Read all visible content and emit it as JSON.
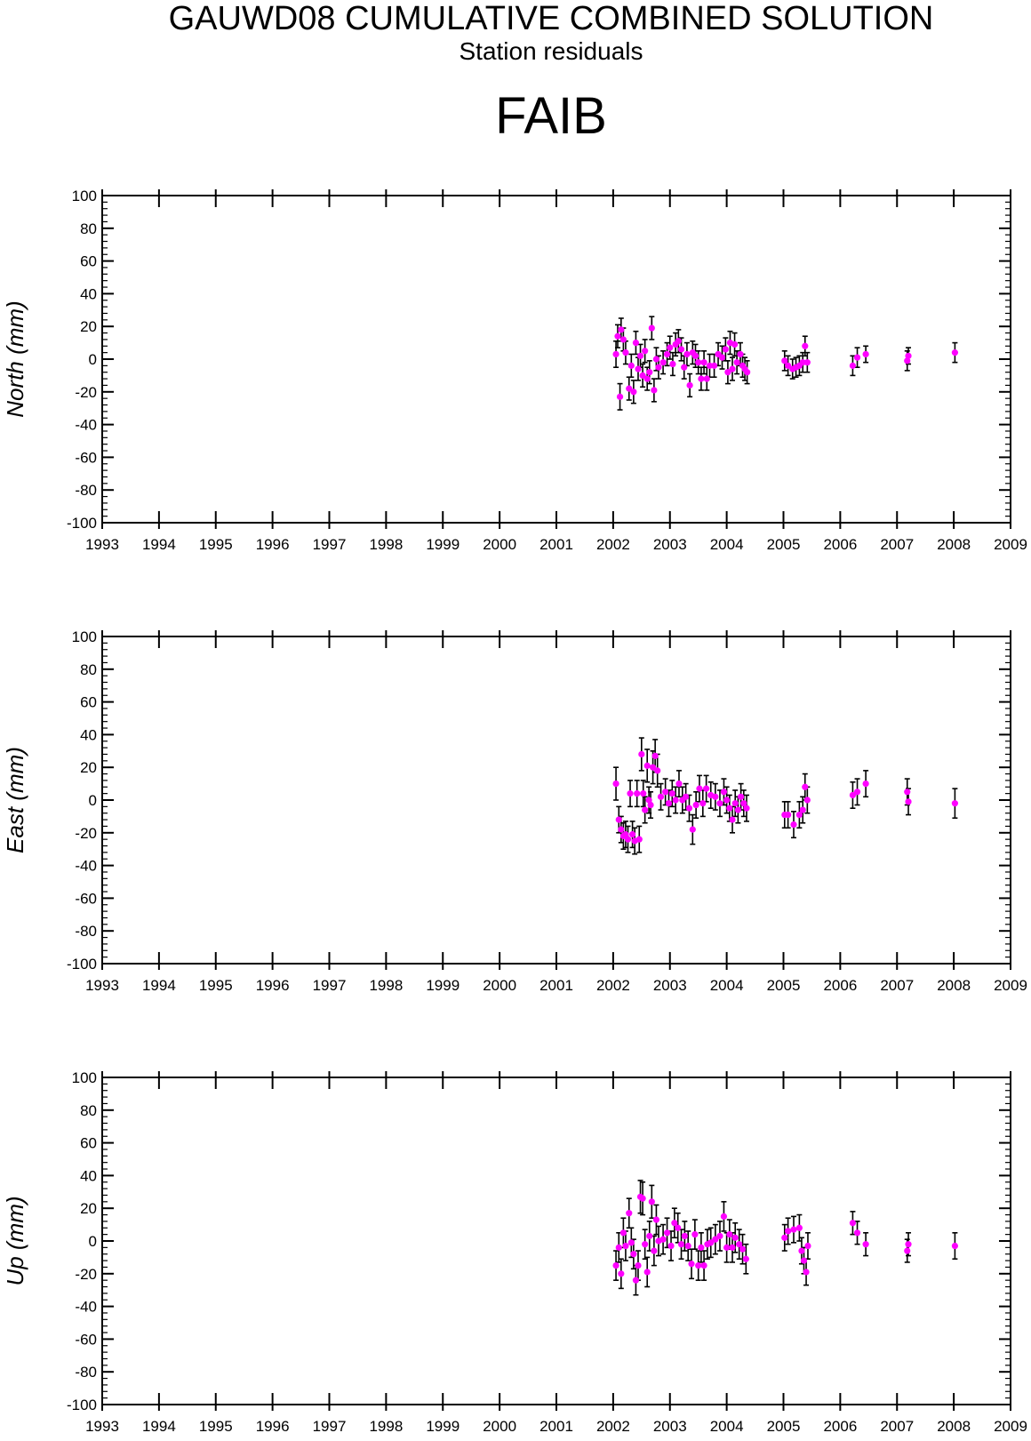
{
  "header": {
    "title": "GAUWD08 CUMULATIVE COMBINED SOLUTION",
    "subtitle": "Station residuals",
    "station": "FAIB"
  },
  "colors": {
    "point": "#ff00ff",
    "errorbar": "#000000",
    "axes": "#000000"
  },
  "chart_data": [
    {
      "type": "scatter",
      "ylabel": "North (mm)",
      "xlim": [
        1993,
        2009
      ],
      "ylim": [
        -100,
        100
      ],
      "x_ticks": [
        "1993",
        "1994",
        "1995",
        "1996",
        "1997",
        "1998",
        "1999",
        "2000",
        "2001",
        "2002",
        "2003",
        "2004",
        "2005",
        "2006",
        "2007",
        "2008",
        "2009"
      ],
      "y_ticks": [
        "100",
        "80",
        "60",
        "40",
        "20",
        "0",
        "-20",
        "-40",
        "-60",
        "-80",
        "-100"
      ],
      "error_bars": true,
      "points": [
        {
          "x": 2002.05,
          "y": 3,
          "err": 8
        },
        {
          "x": 2002.08,
          "y": 14,
          "err": 7
        },
        {
          "x": 2002.12,
          "y": -23,
          "err": 8
        },
        {
          "x": 2002.14,
          "y": 18,
          "err": 7
        },
        {
          "x": 2002.18,
          "y": 12,
          "err": 7
        },
        {
          "x": 2002.22,
          "y": 4,
          "err": 7
        },
        {
          "x": 2002.28,
          "y": -18,
          "err": 7
        },
        {
          "x": 2002.32,
          "y": -4,
          "err": 7
        },
        {
          "x": 2002.36,
          "y": -20,
          "err": 7
        },
        {
          "x": 2002.4,
          "y": 10,
          "err": 7
        },
        {
          "x": 2002.44,
          "y": -6,
          "err": 7
        },
        {
          "x": 2002.48,
          "y": 2,
          "err": 7
        },
        {
          "x": 2002.52,
          "y": -10,
          "err": 7
        },
        {
          "x": 2002.56,
          "y": 5,
          "err": 7
        },
        {
          "x": 2002.6,
          "y": -12,
          "err": 7
        },
        {
          "x": 2002.64,
          "y": -8,
          "err": 7
        },
        {
          "x": 2002.68,
          "y": 19,
          "err": 7
        },
        {
          "x": 2002.72,
          "y": -19,
          "err": 7
        },
        {
          "x": 2002.76,
          "y": 0,
          "err": 7
        },
        {
          "x": 2002.8,
          "y": -5,
          "err": 7
        },
        {
          "x": 2002.88,
          "y": -2,
          "err": 7
        },
        {
          "x": 2002.95,
          "y": 3,
          "err": 7
        },
        {
          "x": 2003.0,
          "y": 7,
          "err": 7
        },
        {
          "x": 2003.05,
          "y": -3,
          "err": 7
        },
        {
          "x": 2003.1,
          "y": 9,
          "err": 7
        },
        {
          "x": 2003.15,
          "y": 11,
          "err": 7
        },
        {
          "x": 2003.2,
          "y": 6,
          "err": 7
        },
        {
          "x": 2003.25,
          "y": -5,
          "err": 7
        },
        {
          "x": 2003.3,
          "y": 3,
          "err": 7
        },
        {
          "x": 2003.35,
          "y": -16,
          "err": 7
        },
        {
          "x": 2003.4,
          "y": 4,
          "err": 7
        },
        {
          "x": 2003.45,
          "y": 2,
          "err": 7
        },
        {
          "x": 2003.5,
          "y": -2,
          "err": 7
        },
        {
          "x": 2003.55,
          "y": -12,
          "err": 7
        },
        {
          "x": 2003.6,
          "y": -2,
          "err": 7
        },
        {
          "x": 2003.65,
          "y": -12,
          "err": 7
        },
        {
          "x": 2003.7,
          "y": -4,
          "err": 7
        },
        {
          "x": 2003.78,
          "y": -4,
          "err": 7
        },
        {
          "x": 2003.85,
          "y": 3,
          "err": 7
        },
        {
          "x": 2003.92,
          "y": 1,
          "err": 7
        },
        {
          "x": 2003.98,
          "y": 6,
          "err": 7
        },
        {
          "x": 2004.02,
          "y": -8,
          "err": 7
        },
        {
          "x": 2004.06,
          "y": 10,
          "err": 7
        },
        {
          "x": 2004.1,
          "y": -6,
          "err": 7
        },
        {
          "x": 2004.14,
          "y": 9,
          "err": 7
        },
        {
          "x": 2004.18,
          "y": -2,
          "err": 7
        },
        {
          "x": 2004.24,
          "y": 3,
          "err": 7
        },
        {
          "x": 2004.28,
          "y": -4,
          "err": 7
        },
        {
          "x": 2004.32,
          "y": -6,
          "err": 7
        },
        {
          "x": 2004.36,
          "y": -8,
          "err": 7
        },
        {
          "x": 2005.02,
          "y": -1,
          "err": 6
        },
        {
          "x": 2005.08,
          "y": -4,
          "err": 6
        },
        {
          "x": 2005.16,
          "y": -6,
          "err": 6
        },
        {
          "x": 2005.22,
          "y": -5,
          "err": 6
        },
        {
          "x": 2005.28,
          "y": -4,
          "err": 6
        },
        {
          "x": 2005.34,
          "y": -2,
          "err": 6
        },
        {
          "x": 2005.38,
          "y": 8,
          "err": 6
        },
        {
          "x": 2005.42,
          "y": -2,
          "err": 6
        },
        {
          "x": 2006.22,
          "y": -4,
          "err": 6
        },
        {
          "x": 2006.3,
          "y": 1,
          "err": 6
        },
        {
          "x": 2006.45,
          "y": 3,
          "err": 5
        },
        {
          "x": 2007.18,
          "y": -1,
          "err": 6
        },
        {
          "x": 2007.2,
          "y": 2,
          "err": 5
        },
        {
          "x": 2008.02,
          "y": 4,
          "err": 6
        }
      ]
    },
    {
      "type": "scatter",
      "ylabel": "East (mm)",
      "xlim": [
        1993,
        2009
      ],
      "ylim": [
        -100,
        100
      ],
      "x_ticks": [
        "1993",
        "1994",
        "1995",
        "1996",
        "1997",
        "1998",
        "1999",
        "2000",
        "2001",
        "2002",
        "2003",
        "2004",
        "2005",
        "2006",
        "2007",
        "2008",
        "2009"
      ],
      "y_ticks": [
        "100",
        "80",
        "60",
        "40",
        "20",
        "0",
        "-20",
        "-40",
        "-60",
        "-80",
        "-100"
      ],
      "error_bars": true,
      "points": [
        {
          "x": 2002.05,
          "y": 10,
          "err": 10
        },
        {
          "x": 2002.1,
          "y": -12,
          "err": 8
        },
        {
          "x": 2002.14,
          "y": -18,
          "err": 8
        },
        {
          "x": 2002.18,
          "y": -22,
          "err": 8
        },
        {
          "x": 2002.22,
          "y": -21,
          "err": 8
        },
        {
          "x": 2002.26,
          "y": -24,
          "err": 8
        },
        {
          "x": 2002.3,
          "y": 4,
          "err": 8
        },
        {
          "x": 2002.34,
          "y": -21,
          "err": 8
        },
        {
          "x": 2002.38,
          "y": -25,
          "err": 8
        },
        {
          "x": 2002.42,
          "y": 4,
          "err": 8
        },
        {
          "x": 2002.46,
          "y": -24,
          "err": 8
        },
        {
          "x": 2002.5,
          "y": 28,
          "err": 10
        },
        {
          "x": 2002.53,
          "y": 4,
          "err": 8
        },
        {
          "x": 2002.56,
          "y": -6,
          "err": 8
        },
        {
          "x": 2002.6,
          "y": 21,
          "err": 10
        },
        {
          "x": 2002.63,
          "y": 0,
          "err": 8
        },
        {
          "x": 2002.66,
          "y": -3,
          "err": 8
        },
        {
          "x": 2002.7,
          "y": 20,
          "err": 10
        },
        {
          "x": 2002.74,
          "y": 27,
          "err": 10
        },
        {
          "x": 2002.78,
          "y": 18,
          "err": 10
        },
        {
          "x": 2002.84,
          "y": 2,
          "err": 8
        },
        {
          "x": 2002.92,
          "y": 5,
          "err": 8
        },
        {
          "x": 2002.98,
          "y": -2,
          "err": 8
        },
        {
          "x": 2003.04,
          "y": 4,
          "err": 8
        },
        {
          "x": 2003.1,
          "y": 0,
          "err": 8
        },
        {
          "x": 2003.16,
          "y": 10,
          "err": 8
        },
        {
          "x": 2003.22,
          "y": 0,
          "err": 8
        },
        {
          "x": 2003.28,
          "y": 2,
          "err": 8
        },
        {
          "x": 2003.34,
          "y": -5,
          "err": 8
        },
        {
          "x": 2003.4,
          "y": -18,
          "err": 9
        },
        {
          "x": 2003.46,
          "y": -3,
          "err": 8
        },
        {
          "x": 2003.52,
          "y": 7,
          "err": 8
        },
        {
          "x": 2003.58,
          "y": -2,
          "err": 8
        },
        {
          "x": 2003.64,
          "y": 7,
          "err": 8
        },
        {
          "x": 2003.72,
          "y": 3,
          "err": 8
        },
        {
          "x": 2003.8,
          "y": 2,
          "err": 8
        },
        {
          "x": 2003.88,
          "y": -2,
          "err": 8
        },
        {
          "x": 2003.95,
          "y": 5,
          "err": 8
        },
        {
          "x": 2004.0,
          "y": 0,
          "err": 8
        },
        {
          "x": 2004.05,
          "y": -5,
          "err": 8
        },
        {
          "x": 2004.1,
          "y": -12,
          "err": 8
        },
        {
          "x": 2004.15,
          "y": -2,
          "err": 8
        },
        {
          "x": 2004.2,
          "y": -6,
          "err": 8
        },
        {
          "x": 2004.25,
          "y": 2,
          "err": 8
        },
        {
          "x": 2004.3,
          "y": -2,
          "err": 8
        },
        {
          "x": 2004.35,
          "y": -5,
          "err": 8
        },
        {
          "x": 2005.02,
          "y": -9,
          "err": 8
        },
        {
          "x": 2005.08,
          "y": -9,
          "err": 8
        },
        {
          "x": 2005.18,
          "y": -15,
          "err": 8
        },
        {
          "x": 2005.28,
          "y": -9,
          "err": 8
        },
        {
          "x": 2005.34,
          "y": -6,
          "err": 8
        },
        {
          "x": 2005.38,
          "y": 8,
          "err": 8
        },
        {
          "x": 2005.42,
          "y": 0,
          "err": 8
        },
        {
          "x": 2006.22,
          "y": 3,
          "err": 8
        },
        {
          "x": 2006.3,
          "y": 5,
          "err": 8
        },
        {
          "x": 2006.45,
          "y": 10,
          "err": 8
        },
        {
          "x": 2007.18,
          "y": 5,
          "err": 8
        },
        {
          "x": 2007.2,
          "y": -1,
          "err": 8
        },
        {
          "x": 2008.02,
          "y": -2,
          "err": 9
        }
      ]
    },
    {
      "type": "scatter",
      "ylabel": "Up (mm)",
      "xlim": [
        1993,
        2009
      ],
      "ylim": [
        -100,
        100
      ],
      "x_ticks": [
        "1993",
        "1994",
        "1995",
        "1996",
        "1997",
        "1998",
        "1999",
        "2000",
        "2001",
        "2002",
        "2003",
        "2004",
        "2005",
        "2006",
        "2007",
        "2008",
        "2009"
      ],
      "y_ticks": [
        "100",
        "80",
        "60",
        "40",
        "20",
        "0",
        "-20",
        "-40",
        "-60",
        "-80",
        "-100"
      ],
      "error_bars": true,
      "points": [
        {
          "x": 2002.05,
          "y": -15,
          "err": 9
        },
        {
          "x": 2002.1,
          "y": -4,
          "err": 9
        },
        {
          "x": 2002.14,
          "y": -20,
          "err": 9
        },
        {
          "x": 2002.18,
          "y": 5,
          "err": 9
        },
        {
          "x": 2002.22,
          "y": -3,
          "err": 9
        },
        {
          "x": 2002.28,
          "y": 17,
          "err": 9
        },
        {
          "x": 2002.32,
          "y": -1,
          "err": 9
        },
        {
          "x": 2002.36,
          "y": -8,
          "err": 9
        },
        {
          "x": 2002.4,
          "y": -24,
          "err": 9
        },
        {
          "x": 2002.44,
          "y": -15,
          "err": 9
        },
        {
          "x": 2002.48,
          "y": 27,
          "err": 10
        },
        {
          "x": 2002.52,
          "y": 26,
          "err": 10
        },
        {
          "x": 2002.56,
          "y": -2,
          "err": 9
        },
        {
          "x": 2002.6,
          "y": -19,
          "err": 9
        },
        {
          "x": 2002.64,
          "y": 3,
          "err": 9
        },
        {
          "x": 2002.68,
          "y": 24,
          "err": 10
        },
        {
          "x": 2002.72,
          "y": -6,
          "err": 9
        },
        {
          "x": 2002.76,
          "y": 13,
          "err": 9
        },
        {
          "x": 2002.8,
          "y": 0,
          "err": 9
        },
        {
          "x": 2002.88,
          "y": 1,
          "err": 9
        },
        {
          "x": 2002.95,
          "y": 5,
          "err": 9
        },
        {
          "x": 2003.02,
          "y": -3,
          "err": 9
        },
        {
          "x": 2003.08,
          "y": 11,
          "err": 9
        },
        {
          "x": 2003.14,
          "y": 8,
          "err": 9
        },
        {
          "x": 2003.2,
          "y": -2,
          "err": 9
        },
        {
          "x": 2003.26,
          "y": 3,
          "err": 9
        },
        {
          "x": 2003.32,
          "y": -3,
          "err": 9
        },
        {
          "x": 2003.38,
          "y": -14,
          "err": 9
        },
        {
          "x": 2003.44,
          "y": 4,
          "err": 9
        },
        {
          "x": 2003.5,
          "y": -15,
          "err": 9
        },
        {
          "x": 2003.55,
          "y": -4,
          "err": 9
        },
        {
          "x": 2003.6,
          "y": -15,
          "err": 9
        },
        {
          "x": 2003.66,
          "y": -2,
          "err": 9
        },
        {
          "x": 2003.72,
          "y": -1,
          "err": 9
        },
        {
          "x": 2003.8,
          "y": 1,
          "err": 9
        },
        {
          "x": 2003.88,
          "y": 3,
          "err": 9
        },
        {
          "x": 2003.95,
          "y": 15,
          "err": 9
        },
        {
          "x": 2004.0,
          "y": -4,
          "err": 9
        },
        {
          "x": 2004.05,
          "y": 4,
          "err": 9
        },
        {
          "x": 2004.1,
          "y": -4,
          "err": 9
        },
        {
          "x": 2004.15,
          "y": 2,
          "err": 9
        },
        {
          "x": 2004.22,
          "y": -2,
          "err": 9
        },
        {
          "x": 2004.28,
          "y": -5,
          "err": 9
        },
        {
          "x": 2004.34,
          "y": -11,
          "err": 9
        },
        {
          "x": 2005.02,
          "y": 2,
          "err": 8
        },
        {
          "x": 2005.08,
          "y": 6,
          "err": 8
        },
        {
          "x": 2005.18,
          "y": 7,
          "err": 8
        },
        {
          "x": 2005.28,
          "y": 8,
          "err": 8
        },
        {
          "x": 2005.32,
          "y": -6,
          "err": 8
        },
        {
          "x": 2005.36,
          "y": -12,
          "err": 8
        },
        {
          "x": 2005.4,
          "y": -19,
          "err": 8
        },
        {
          "x": 2005.43,
          "y": -3,
          "err": 8
        },
        {
          "x": 2006.22,
          "y": 11,
          "err": 7
        },
        {
          "x": 2006.3,
          "y": 5,
          "err": 7
        },
        {
          "x": 2006.45,
          "y": -2,
          "err": 7
        },
        {
          "x": 2007.18,
          "y": -6,
          "err": 7
        },
        {
          "x": 2007.2,
          "y": -2,
          "err": 7
        },
        {
          "x": 2008.02,
          "y": -3,
          "err": 8
        }
      ]
    }
  ]
}
